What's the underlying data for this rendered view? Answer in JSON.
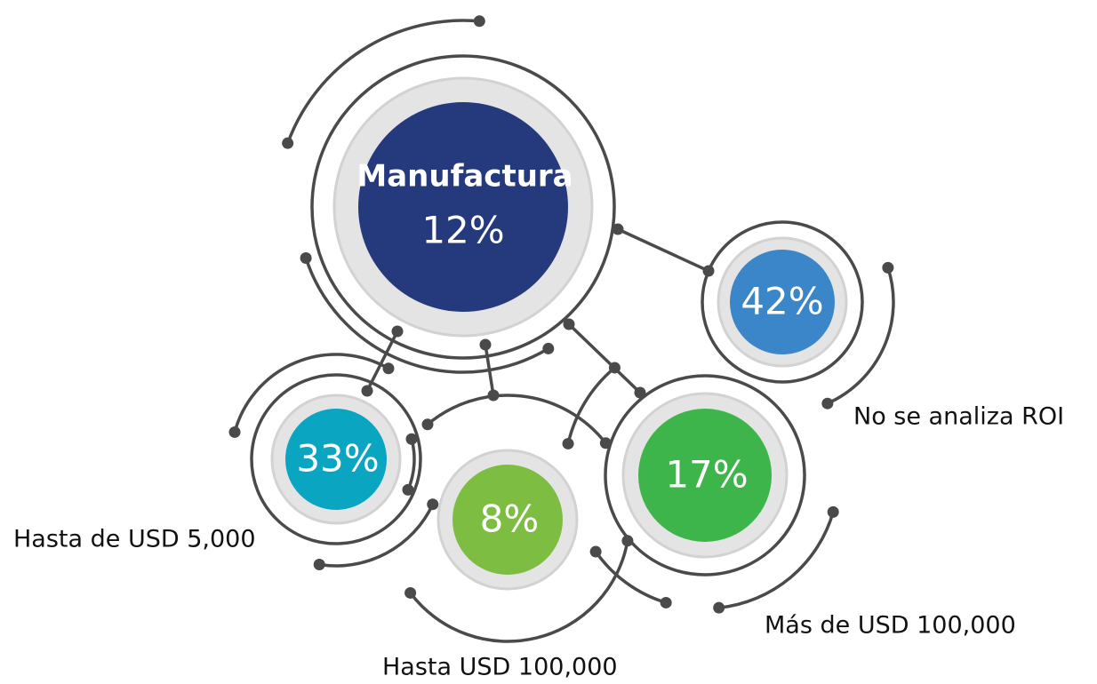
{
  "main": {
    "label": "Manufactura",
    "value": "12%"
  },
  "nodes": [
    {
      "value": "42%",
      "label": "No se analiza ROI"
    },
    {
      "value": "33%",
      "label": "Hasta de USD 5,000"
    },
    {
      "value": "8%",
      "label": "Hasta USD 100,000"
    },
    {
      "value": "17%",
      "label": "Más de USD 100,000"
    }
  ]
}
